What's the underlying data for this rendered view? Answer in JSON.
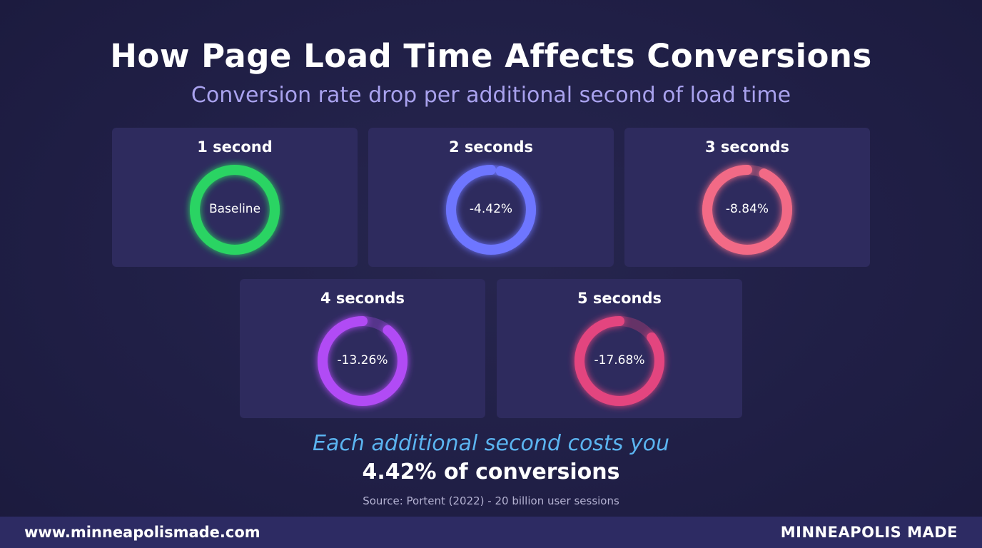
{
  "title": "How Page Load Time Affects Conversions",
  "subtitle": "Conversion rate drop per additional second of load time",
  "chart_data": {
    "type": "donut",
    "items": [
      {
        "label": "1 second",
        "display": "Baseline",
        "value": 0,
        "progress": 1.0,
        "color": "#2bd463"
      },
      {
        "label": "2 seconds",
        "display": "-4.42%",
        "value": -4.42,
        "progress": 0.96,
        "color": "#6e76ff"
      },
      {
        "label": "3 seconds",
        "display": "-8.84%",
        "value": -8.84,
        "progress": 0.93,
        "color": "#f26b86"
      },
      {
        "label": "4 seconds",
        "display": "-13.26%",
        "value": -13.26,
        "progress": 0.89,
        "color": "#b14cf5"
      },
      {
        "label": "5 seconds",
        "display": "-17.68%",
        "value": -17.68,
        "progress": 0.85,
        "color": "#e3457f"
      }
    ]
  },
  "tagline": "Each additional second costs you",
  "tagline_strong": "4.42% of conversions",
  "source": "Source: Portent (2022) - 20 billion user sessions",
  "footer": {
    "url": "www.minneapolismade.com",
    "brand": "MINNEAPOLIS MADE"
  }
}
